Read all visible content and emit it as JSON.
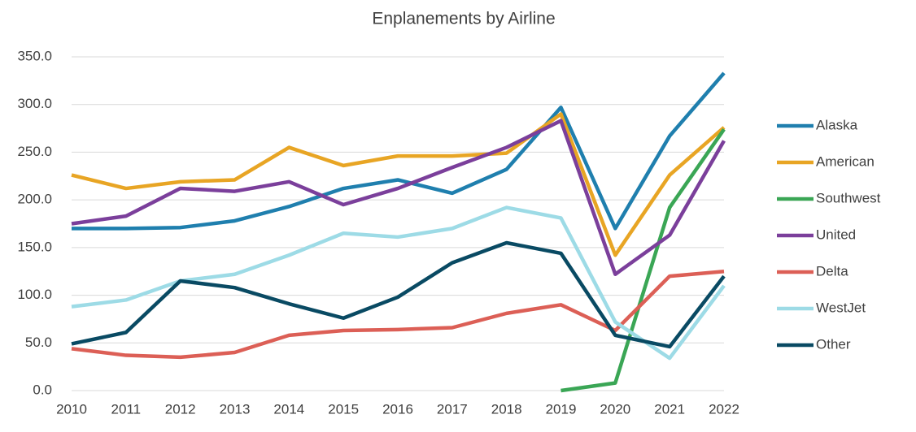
{
  "chart_data": {
    "type": "line",
    "title": "Enplanements by Airline",
    "x": [
      2010,
      2011,
      2012,
      2013,
      2014,
      2015,
      2016,
      2017,
      2018,
      2019,
      2020,
      2021,
      2022
    ],
    "xlim": [
      2010,
      2022
    ],
    "xticks": [
      2010,
      2011,
      2012,
      2013,
      2014,
      2015,
      2016,
      2017,
      2018,
      2019,
      2020,
      2021,
      2022
    ],
    "ylim": [
      0,
      350
    ],
    "yticks": [
      {
        "value": 0,
        "label": "0.0"
      },
      {
        "value": 50,
        "label": "50.0"
      },
      {
        "value": 100,
        "label": "100.0"
      },
      {
        "value": 150,
        "label": "150.0"
      },
      {
        "value": 200,
        "label": "200.0"
      },
      {
        "value": 250,
        "label": "250.0"
      },
      {
        "value": 300,
        "label": "300.0"
      },
      {
        "value": 350,
        "label": "350.0"
      }
    ],
    "grid": true,
    "legend": "right",
    "series": [
      {
        "name": "Alaska",
        "color": "#1f7fae",
        "values": [
          170,
          170,
          171,
          178,
          193,
          212,
          221,
          207,
          232,
          297,
          170,
          267,
          333
        ]
      },
      {
        "name": "American",
        "color": "#e8a524",
        "values": [
          226,
          212,
          219,
          221,
          255,
          236,
          246,
          246,
          249,
          290,
          142,
          226,
          276
        ]
      },
      {
        "name": "Southwest",
        "color": "#3aa655",
        "values": [
          null,
          null,
          null,
          null,
          null,
          null,
          null,
          null,
          null,
          0,
          8,
          192,
          274
        ]
      },
      {
        "name": "United",
        "color": "#7b3f9b",
        "values": [
          175,
          183,
          212,
          209,
          219,
          195,
          212,
          234,
          255,
          283,
          122,
          163,
          262
        ]
      },
      {
        "name": "Delta",
        "color": "#dc5f56",
        "values": [
          44,
          37,
          35,
          40,
          58,
          63,
          64,
          66,
          81,
          90,
          63,
          120,
          125
        ]
      },
      {
        "name": "WestJet",
        "color": "#9ddbe6",
        "values": [
          88,
          95,
          115,
          122,
          142,
          165,
          161,
          170,
          192,
          181,
          72,
          34,
          110
        ]
      },
      {
        "name": "Other",
        "color": "#094a63",
        "values": [
          49,
          61,
          115,
          108,
          91,
          76,
          98,
          134,
          155,
          144,
          58,
          46,
          120
        ]
      }
    ]
  }
}
